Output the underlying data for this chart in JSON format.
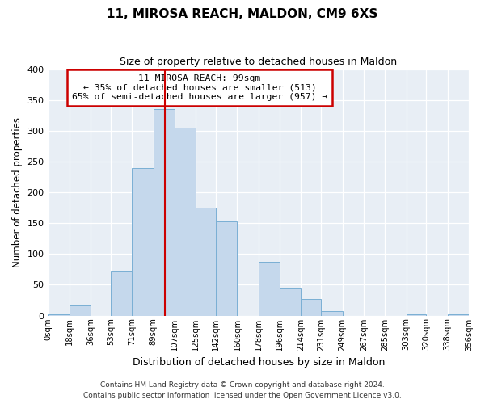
{
  "title": "11, MIROSA REACH, MALDON, CM9 6XS",
  "subtitle": "Size of property relative to detached houses in Maldon",
  "xlabel": "Distribution of detached houses by size in Maldon",
  "ylabel": "Number of detached properties",
  "bar_color": "#c5d8ec",
  "bar_edge_color": "#7aafd4",
  "background_color": "#e8eef5",
  "grid_color": "#ffffff",
  "bin_edges": [
    0,
    18,
    36,
    53,
    71,
    89,
    107,
    125,
    142,
    160,
    178,
    196,
    214,
    231,
    249,
    267,
    285,
    303,
    320,
    338,
    356
  ],
  "bin_labels": [
    "0sqm",
    "18sqm",
    "36sqm",
    "53sqm",
    "71sqm",
    "89sqm",
    "107sqm",
    "125sqm",
    "142sqm",
    "160sqm",
    "178sqm",
    "196sqm",
    "214sqm",
    "231sqm",
    "249sqm",
    "267sqm",
    "285sqm",
    "303sqm",
    "320sqm",
    "338sqm",
    "356sqm"
  ],
  "counts": [
    2,
    16,
    0,
    72,
    240,
    335,
    305,
    175,
    153,
    0,
    87,
    44,
    27,
    7,
    0,
    0,
    0,
    2,
    0,
    2
  ],
  "property_value": 99,
  "vline_color": "#cc0000",
  "annotation_text": "11 MIROSA REACH: 99sqm\n← 35% of detached houses are smaller (513)\n65% of semi-detached houses are larger (957) →",
  "annotation_box_color": "#ffffff",
  "annotation_box_edge_color": "#cc0000",
  "ylim": [
    0,
    400
  ],
  "yticks": [
    0,
    50,
    100,
    150,
    200,
    250,
    300,
    350,
    400
  ],
  "footer_line1": "Contains HM Land Registry data © Crown copyright and database right 2024.",
  "footer_line2": "Contains public sector information licensed under the Open Government Licence v3.0."
}
